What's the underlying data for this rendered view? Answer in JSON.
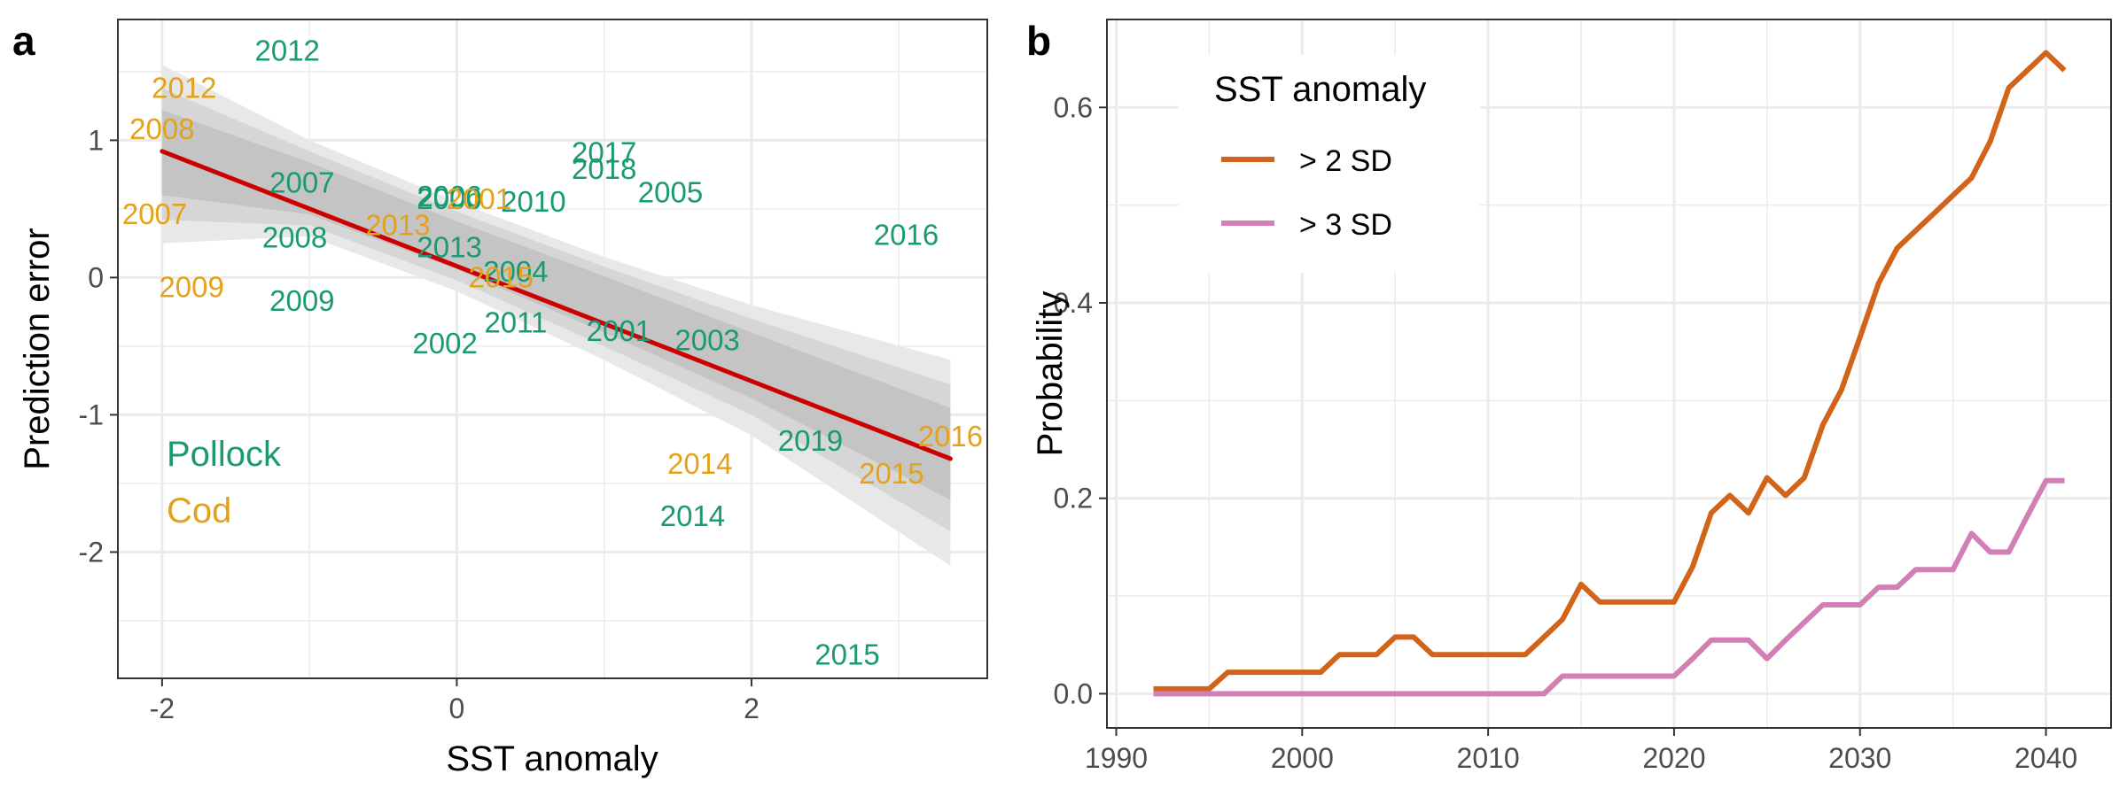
{
  "colors": {
    "pollock": "#1a9a72",
    "cod": "#e3a21a",
    "fit_line": "#cc0000",
    "ribbon_outer": "#e8e8e8",
    "ribbon_mid": "#d6d6d6",
    "ribbon_inner": "#c4c4c4",
    "sd2": "#d2641a",
    "sd3": "#d17fb4",
    "grid": "#ebebeb",
    "axis_text": "#4d4d4d"
  },
  "chart_data": [
    {
      "panel": "a",
      "type": "scatter",
      "xlabel": "SST anomaly",
      "ylabel": "Prediction error",
      "xlim": [
        -2.3,
        3.6
      ],
      "ylim": [
        -2.92,
        1.88
      ],
      "x_ticks": [
        -2,
        0,
        2
      ],
      "x_tick_labels": [
        "-2",
        "0",
        "2"
      ],
      "y_ticks": [
        -2,
        -1,
        0,
        1
      ],
      "y_tick_labels": [
        "-2",
        "-1",
        "0",
        "1"
      ],
      "grid": true,
      "fit": {
        "x": [
          -2.0,
          3.35
        ],
        "y": [
          0.92,
          -1.32
        ]
      },
      "ribbons": [
        {
          "x": [
            -2.0,
            -1.0,
            0.0,
            1.0,
            2.0,
            3.35
          ],
          "upper": [
            1.55,
            1.0,
            0.55,
            0.15,
            -0.2,
            -0.6
          ],
          "lower": [
            0.25,
            0.3,
            -0.1,
            -0.6,
            -1.15,
            -2.1
          ]
        },
        {
          "x": [
            -2.0,
            -1.0,
            0.0,
            1.0,
            2.0,
            3.35
          ],
          "upper": [
            1.38,
            0.92,
            0.48,
            0.08,
            -0.3,
            -0.78
          ],
          "lower": [
            0.42,
            0.38,
            -0.02,
            -0.5,
            -1.0,
            -1.85
          ]
        },
        {
          "x": [
            -2.0,
            -1.0,
            0.0,
            1.0,
            2.0,
            3.35
          ],
          "upper": [
            1.22,
            0.84,
            0.41,
            0.01,
            -0.4,
            -0.95
          ],
          "lower": [
            0.6,
            0.46,
            0.06,
            -0.4,
            -0.88,
            -1.62
          ]
        }
      ],
      "species_labels": [
        "Pollock",
        "Cod"
      ],
      "series": [
        {
          "name": "Pollock",
          "points": [
            {
              "label": "2012",
              "x": -1.15,
              "y": 1.65
            },
            {
              "label": "2007",
              "x": -1.05,
              "y": 0.69
            },
            {
              "label": "2008",
              "x": -1.1,
              "y": 0.29
            },
            {
              "label": "2009",
              "x": -1.05,
              "y": -0.17
            },
            {
              "label": "2006",
              "x": -0.05,
              "y": 0.59
            },
            {
              "label": "2000",
              "x": -0.05,
              "y": 0.57
            },
            {
              "label": "2013",
              "x": -0.05,
              "y": 0.22
            },
            {
              "label": "2002",
              "x": -0.08,
              "y": -0.48
            },
            {
              "label": "2004",
              "x": 0.4,
              "y": 0.04
            },
            {
              "label": "2011",
              "x": 0.4,
              "y": -0.33
            },
            {
              "label": "2010",
              "x": 0.52,
              "y": 0.55
            },
            {
              "label": "2017",
              "x": 1.0,
              "y": 0.91
            },
            {
              "label": "2018",
              "x": 1.0,
              "y": 0.79
            },
            {
              "label": "2005",
              "x": 1.45,
              "y": 0.62
            },
            {
              "label": "2001",
              "x": 1.1,
              "y": -0.39
            },
            {
              "label": "2003",
              "x": 1.7,
              "y": -0.46
            },
            {
              "label": "2016",
              "x": 3.05,
              "y": 0.31
            },
            {
              "label": "2019",
              "x": 2.4,
              "y": -1.19
            },
            {
              "label": "2014",
              "x": 1.6,
              "y": -1.74
            },
            {
              "label": "2015",
              "x": 2.65,
              "y": -2.75
            }
          ]
        },
        {
          "name": "Cod",
          "points": [
            {
              "label": "2012",
              "x": -1.85,
              "y": 1.38
            },
            {
              "label": "2008",
              "x": -2.0,
              "y": 1.08
            },
            {
              "label": "2007",
              "x": -2.05,
              "y": 0.46
            },
            {
              "label": "2009",
              "x": -1.8,
              "y": -0.07
            },
            {
              "label": "2013",
              "x": -0.4,
              "y": 0.38
            },
            {
              "label": "2001",
              "x": 0.15,
              "y": 0.57
            },
            {
              "label": "2015",
              "x": 0.3,
              "y": 0.0
            },
            {
              "label": "2014",
              "x": 1.65,
              "y": -1.36
            },
            {
              "label": "2015",
              "x": 2.95,
              "y": -1.43
            },
            {
              "label": "2016",
              "x": 3.35,
              "y": -1.16
            }
          ]
        }
      ]
    },
    {
      "panel": "b",
      "type": "line",
      "xlabel": "",
      "ylabel": "Probability",
      "xlim": [
        1989.5,
        2043.5
      ],
      "ylim": [
        -0.035,
        0.69
      ],
      "x_ticks": [
        1990,
        2000,
        2010,
        2020,
        2030,
        2040
      ],
      "x_tick_labels": [
        "1990",
        "2000",
        "2010",
        "2020",
        "2030",
        "2040"
      ],
      "y_ticks": [
        0.0,
        0.2,
        0.4,
        0.6
      ],
      "y_tick_labels": [
        "0.0",
        "0.2",
        "0.4",
        "0.6"
      ],
      "grid": true,
      "legend": {
        "title": "SST anomaly",
        "position": "top-left"
      },
      "series": [
        {
          "name": "> 2 SD",
          "color_key": "sd2",
          "x": [
            1992,
            1993,
            1994,
            1995,
            1996,
            1997,
            1998,
            1999,
            2000,
            2001,
            2002,
            2003,
            2004,
            2005,
            2006,
            2007,
            2008,
            2009,
            2010,
            2011,
            2012,
            2013,
            2014,
            2015,
            2016,
            2017,
            2018,
            2019,
            2020,
            2021,
            2022,
            2023,
            2024,
            2025,
            2026,
            2027,
            2028,
            2029,
            2030,
            2031,
            2032,
            2033,
            2034,
            2035,
            2036,
            2037,
            2038,
            2039,
            2040,
            2041
          ],
          "y": [
            0.005,
            0.005,
            0.005,
            0.005,
            0.022,
            0.022,
            0.022,
            0.022,
            0.022,
            0.022,
            0.04,
            0.04,
            0.04,
            0.058,
            0.058,
            0.04,
            0.04,
            0.04,
            0.04,
            0.04,
            0.04,
            0.058,
            0.076,
            0.112,
            0.094,
            0.094,
            0.094,
            0.094,
            0.094,
            0.13,
            0.185,
            0.203,
            0.185,
            0.221,
            0.203,
            0.221,
            0.275,
            0.311,
            0.365,
            0.42,
            0.456,
            0.474,
            0.492,
            0.51,
            0.528,
            0.565,
            0.62,
            0.638,
            0.656,
            0.638
          ]
        },
        {
          "name": "> 3 SD",
          "color_key": "sd3",
          "x": [
            1992,
            1993,
            1994,
            1995,
            1996,
            1997,
            1998,
            1999,
            2000,
            2001,
            2002,
            2003,
            2004,
            2005,
            2006,
            2007,
            2008,
            2009,
            2010,
            2011,
            2012,
            2013,
            2014,
            2015,
            2016,
            2017,
            2018,
            2019,
            2020,
            2021,
            2022,
            2023,
            2024,
            2025,
            2026,
            2027,
            2028,
            2029,
            2030,
            2031,
            2032,
            2033,
            2034,
            2035,
            2036,
            2037,
            2038,
            2039,
            2040,
            2041
          ],
          "y": [
            0,
            0,
            0,
            0,
            0,
            0,
            0,
            0,
            0,
            0,
            0,
            0,
            0,
            0,
            0,
            0,
            0,
            0,
            0,
            0,
            0,
            0,
            0.018,
            0.018,
            0.018,
            0.018,
            0.018,
            0.018,
            0.018,
            0.036,
            0.055,
            0.055,
            0.055,
            0.036,
            0.055,
            0.073,
            0.091,
            0.091,
            0.091,
            0.109,
            0.109,
            0.127,
            0.127,
            0.127,
            0.164,
            0.145,
            0.145,
            0.182,
            0.218,
            0.218
          ]
        }
      ]
    }
  ],
  "panel_labels": {
    "a": "a",
    "b": "b"
  }
}
